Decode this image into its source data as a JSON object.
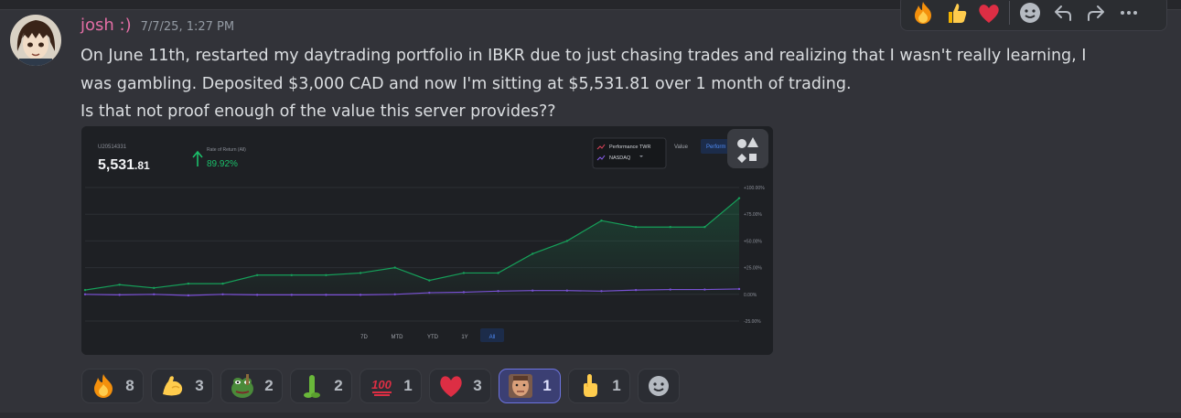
{
  "message": {
    "author": "josh :)",
    "timestamp": "7/7/25, 1:27 PM",
    "lines": [
      "On June 11th, restarted my daytrading portfolio in IBKR due to just chasing trades and realizing that I wasn't really learning, I",
      "was gambling. Deposited $3,000 CAD and now I'm sitting at $5,531.81 over 1 month of trading.",
      "Is that not proof enough of the value this server provides??"
    ]
  },
  "hover_toolbar": [
    "fire-emoji",
    "thumbs-up-emoji",
    "heart-emoji",
    "add-reaction-icon",
    "reply-icon",
    "forward-icon",
    "more-icon"
  ],
  "embed": {
    "account_id": "U20514331",
    "balance_main": "5,531",
    "balance_cents": ".81",
    "ror_label": "Rate of Return (All)",
    "ror_value": "89.92%",
    "legend": [
      "Performance TWR",
      "NASDAQ"
    ],
    "toggle_value": "Value",
    "toggle_perf": "Perform",
    "ranges": [
      "7D",
      "MTD",
      "YTD",
      "1Y",
      "All"
    ],
    "active_range": "All"
  },
  "chart_data": {
    "type": "line",
    "ylim": [
      -25,
      100
    ],
    "yticks": [
      "+100.00%",
      "+75.00%",
      "+50.00%",
      "+25.00%",
      "0.00%",
      "-25.00%"
    ],
    "grid": true,
    "colors": {
      "twr": "#16a05a",
      "nasdaq": "#7b4fd6"
    },
    "series": [
      {
        "name": "Performance TWR",
        "values": [
          4,
          9,
          6,
          10,
          10,
          18,
          18,
          18,
          20,
          25,
          13,
          20,
          20,
          38,
          50,
          69,
          63,
          63,
          63,
          90
        ]
      },
      {
        "name": "NASDAQ",
        "values": [
          0,
          -0.5,
          0,
          -1,
          0,
          -0.5,
          -0.5,
          -0.5,
          -0.5,
          0,
          1.5,
          2,
          3,
          3.5,
          3.5,
          3,
          4,
          4.5,
          4.5,
          5
        ]
      }
    ]
  },
  "reactions": [
    {
      "emoji": "fire",
      "count": "8"
    },
    {
      "emoji": "flexed-biceps",
      "count": "3"
    },
    {
      "emoji": "pepe-frog",
      "count": "2"
    },
    {
      "emoji": "green-stick",
      "count": "2"
    },
    {
      "emoji": "hundred-points",
      "count": "1"
    },
    {
      "emoji": "red-heart",
      "count": "3"
    },
    {
      "emoji": "custom-face",
      "count": "1",
      "me": true
    },
    {
      "emoji": "point-up",
      "count": "1"
    }
  ]
}
